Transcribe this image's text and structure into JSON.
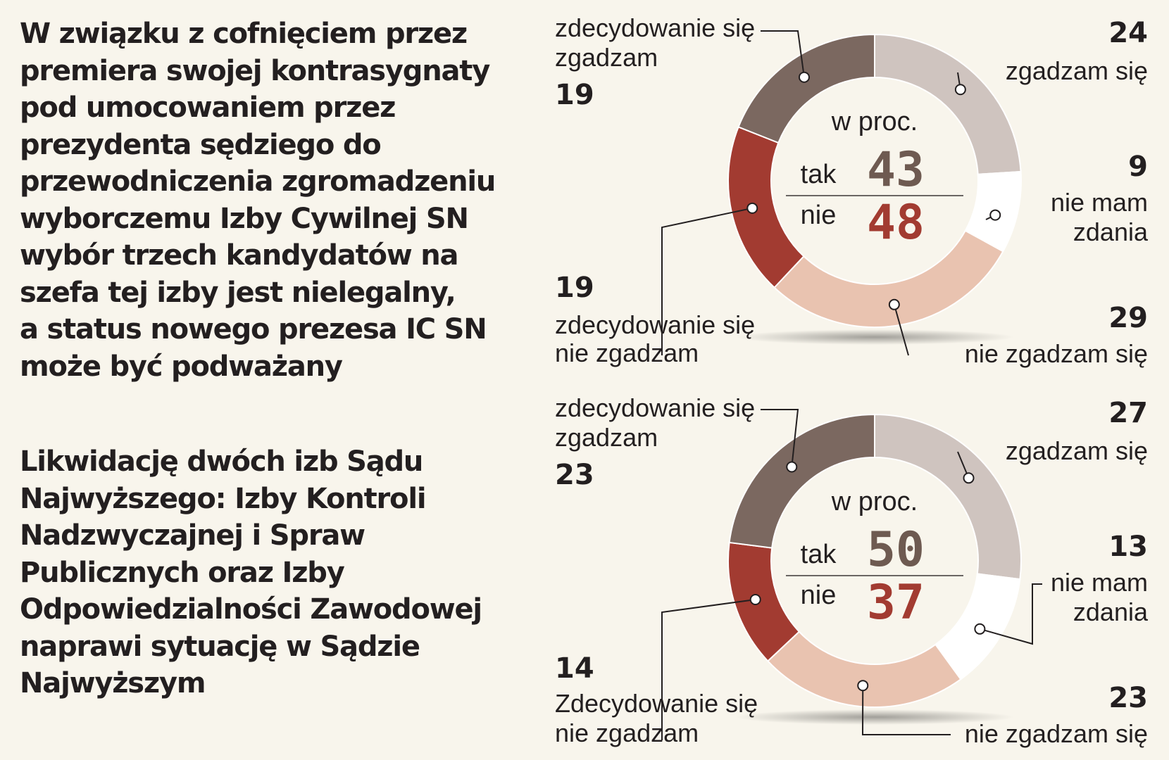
{
  "chart_data": [
    {
      "type": "pie",
      "question_lines": [
        "W związku z cofnięciem przez",
        "premiera swojej kontrasygnaty",
        "pod umocowaniem przez",
        "prezydenta sędziego do",
        "przewodniczenia zgromadzeniu",
        "wyborczemu Izby Cywilnej SN",
        "wybór trzech kandydatów na",
        "szefa tej izby jest nielegalny,",
        "a status nowego prezesa IC SN",
        "może być podważany"
      ],
      "unit_label": "w proc.",
      "summary": [
        {
          "label": "tak",
          "value": "43",
          "color": "#6e5a51"
        },
        {
          "label": "nie",
          "value": "48",
          "color": "#a23b31"
        }
      ],
      "slices": [
        {
          "lines": [
            "zgadzam się"
          ],
          "value": 24,
          "color": "#cfc4bf"
        },
        {
          "lines": [
            "nie mam",
            "zdania"
          ],
          "value": 9,
          "color": "#ffffff"
        },
        {
          "lines": [
            "nie zgadzam się"
          ],
          "value": 29,
          "color": "#e9c3b0"
        },
        {
          "lines": [
            "zdecydowanie się",
            "nie zgadzam"
          ],
          "value": 19,
          "color": "#a23b31"
        },
        {
          "lines": [
            "zdecydowanie się",
            "zgadzam"
          ],
          "value": 19,
          "color": "#7b6860"
        }
      ]
    },
    {
      "type": "pie",
      "question_lines": [
        "Likwidację dwóch izb Sądu",
        "Najwyższego: Izby Kontroli",
        "Nadzwyczajnej i Spraw",
        "Publicznych oraz Izby",
        "Odpowiedzialności Zawodowej",
        "naprawi sytuację w Sądzie",
        "Najwyższym"
      ],
      "unit_label": "w proc.",
      "summary": [
        {
          "label": "tak",
          "value": "50",
          "color": "#6e5a51"
        },
        {
          "label": "nie",
          "value": "37",
          "color": "#a23b31"
        }
      ],
      "slices": [
        {
          "lines": [
            "zgadzam się"
          ],
          "value": 27,
          "color": "#cfc4bf"
        },
        {
          "lines": [
            "nie mam",
            "zdania"
          ],
          "value": 13,
          "color": "#ffffff"
        },
        {
          "lines": [
            "nie zgadzam się"
          ],
          "value": 23,
          "color": "#e9c3b0"
        },
        {
          "lines": [
            "Zdecydowanie się",
            "nie zgadzam"
          ],
          "value": 14,
          "color": "#a23b31"
        },
        {
          "lines": [
            "zdecydowanie się",
            "zgadzam"
          ],
          "value": 23,
          "color": "#7b6860"
        }
      ]
    }
  ]
}
